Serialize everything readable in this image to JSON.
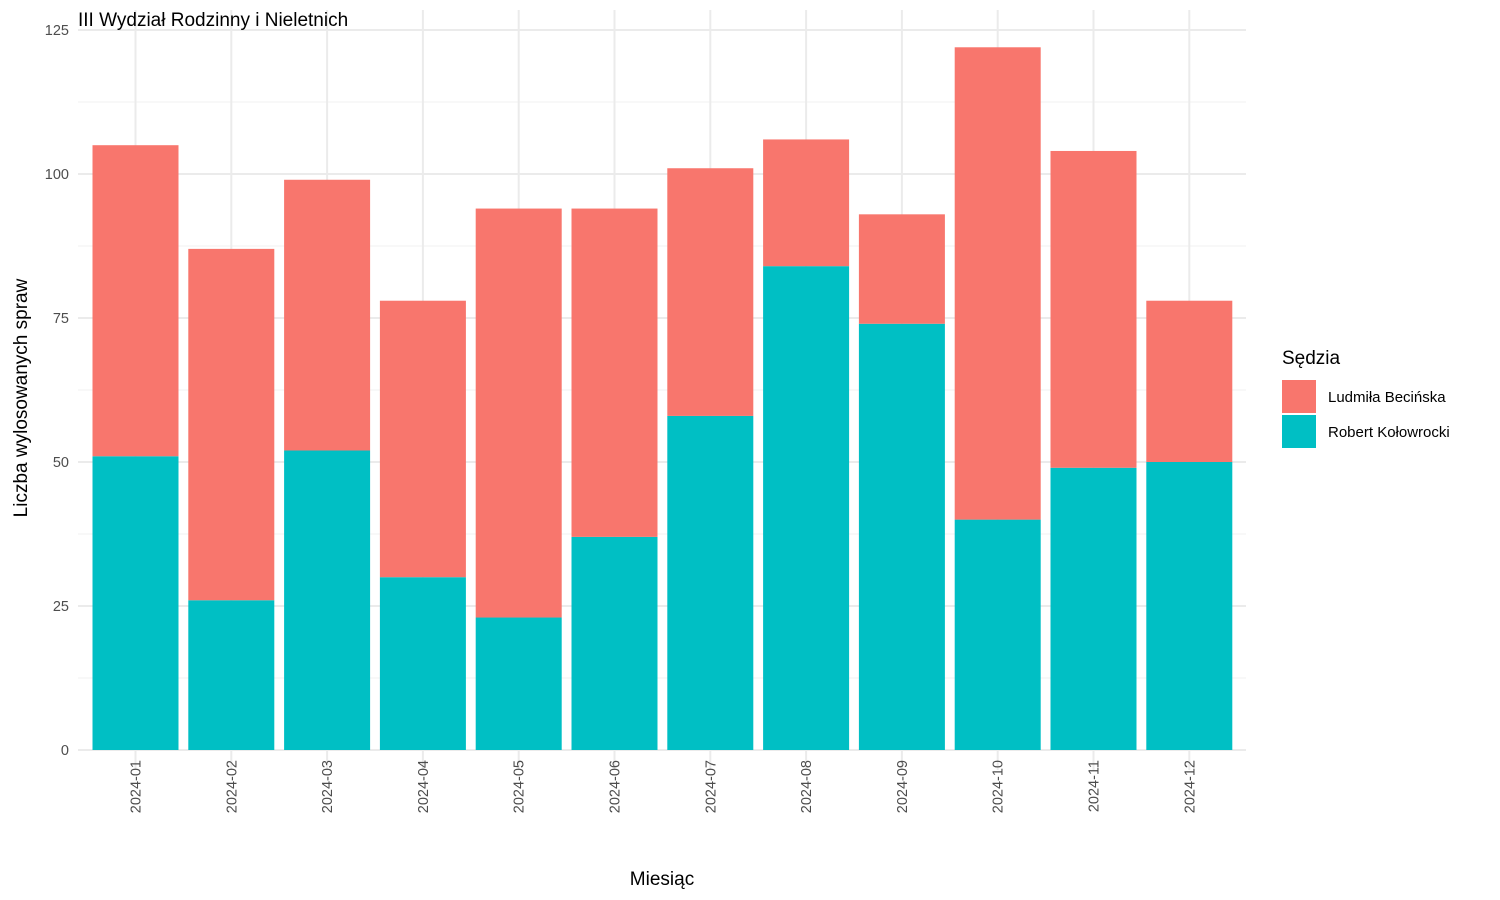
{
  "chart_data": {
    "type": "bar",
    "stacked": true,
    "title": "III Wydział Rodzinny i Nieletnich",
    "xlabel": "Miesiąc",
    "ylabel": "Liczba wylosowanych spraw",
    "ylim": [
      0,
      125
    ],
    "y_ticks": [
      "0",
      "25",
      "50",
      "75",
      "100",
      "125"
    ],
    "grid": true,
    "legend_title": "Sędzia",
    "legend_position": "right",
    "categories": [
      "2024-01",
      "2024-02",
      "2024-03",
      "2024-04",
      "2024-05",
      "2024-06",
      "2024-07",
      "2024-08",
      "2024-09",
      "2024-10",
      "2024-11",
      "2024-12"
    ],
    "series": [
      {
        "name": "Robert Kołowrocki",
        "color": "#00BFC4",
        "values": [
          51,
          26,
          52,
          30,
          23,
          37,
          58,
          84,
          74,
          40,
          49,
          50
        ]
      },
      {
        "name": "Ludmiła Becińska",
        "color": "#F8766D",
        "values": [
          54,
          61,
          47,
          48,
          71,
          57,
          43,
          22,
          19,
          82,
          55,
          28
        ]
      }
    ],
    "legend_order": [
      "Ludmiła Becińska",
      "Robert Kołowrocki"
    ]
  }
}
